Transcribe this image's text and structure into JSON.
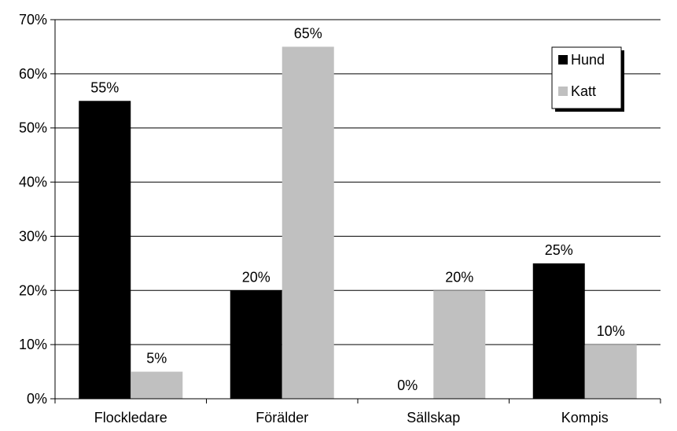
{
  "chart_data": {
    "type": "bar",
    "categories": [
      "Flockledare",
      "Förälder",
      "Sällskap",
      "Kompis"
    ],
    "series": [
      {
        "name": "Hund",
        "values": [
          55,
          20,
          0,
          25
        ],
        "labels": [
          "55%",
          "20%",
          "0%",
          "25%"
        ],
        "color": "#000000"
      },
      {
        "name": "Katt",
        "values": [
          5,
          65,
          20,
          10
        ],
        "labels": [
          "5%",
          "65%",
          "20%",
          "10%"
        ],
        "color": "#c0c0c0"
      }
    ],
    "y_ticks": [
      "0%",
      "10%",
      "20%",
      "30%",
      "40%",
      "50%",
      "60%",
      "70%"
    ],
    "ylim": [
      0,
      70
    ],
    "grid": true,
    "legend_position": "top-right"
  }
}
